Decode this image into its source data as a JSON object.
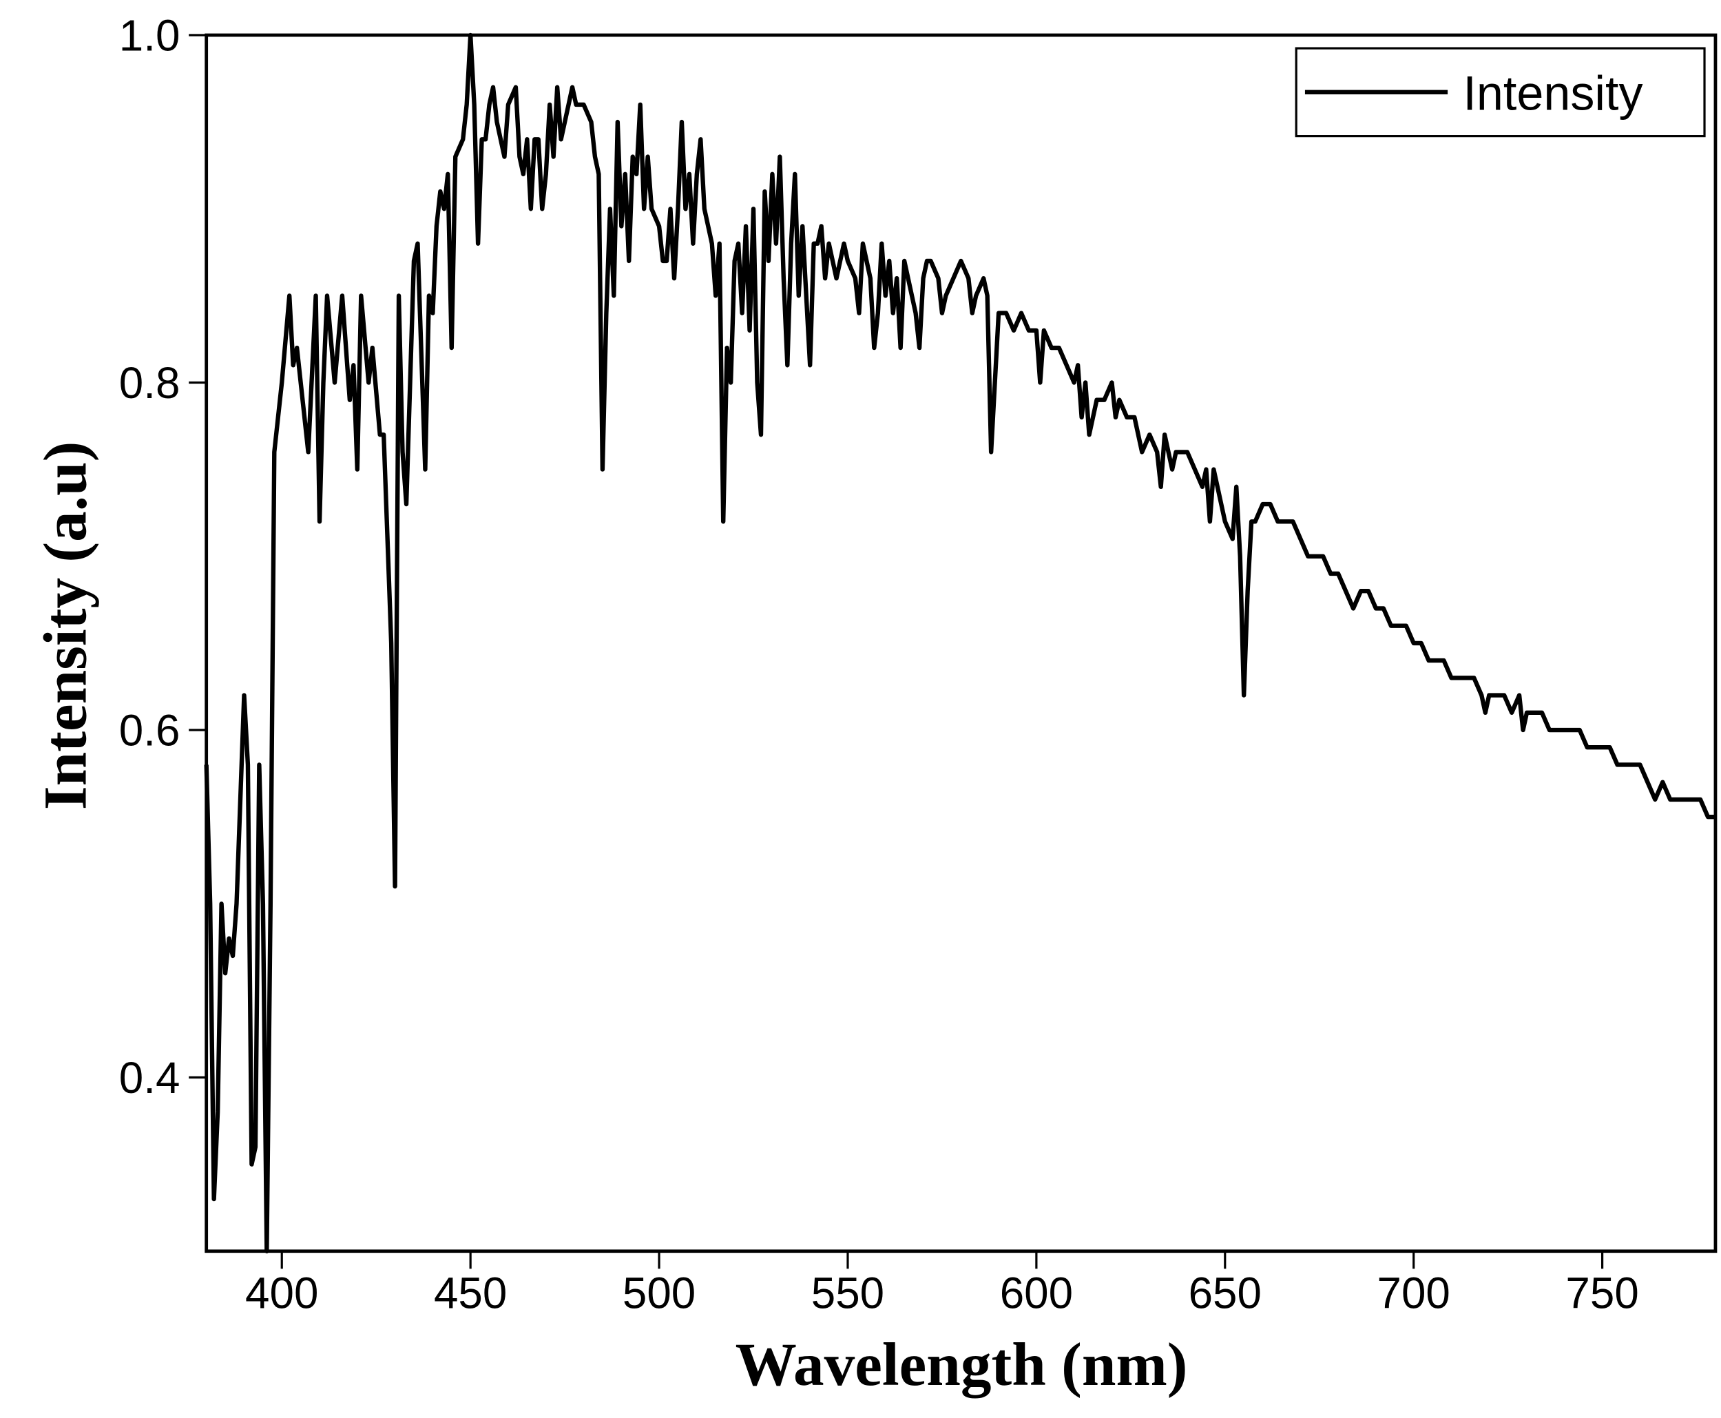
{
  "chart_data": {
    "type": "line",
    "x_label": "Wavelength (nm)",
    "y_label": "Intensity (a.u)",
    "xlim": [
      380,
      780
    ],
    "ylim": [
      0.3,
      1.0
    ],
    "xticks": [
      400,
      450,
      500,
      550,
      600,
      650,
      700,
      750
    ],
    "yticks": [
      {
        "value": 0.4,
        "label": "0.4"
      },
      {
        "value": 0.6,
        "label": "0.6"
      },
      {
        "value": 0.8,
        "label": "0.8"
      },
      {
        "value": 1.0,
        "label": "1.0"
      }
    ],
    "legend": "upper right",
    "x": [
      380,
      381,
      382,
      383,
      384,
      385,
      386,
      387,
      388,
      389,
      390,
      391,
      392,
      393,
      394,
      395,
      396,
      397,
      398,
      400,
      402,
      403,
      404,
      406,
      407,
      409,
      410,
      411,
      412,
      414,
      416,
      418,
      419,
      420,
      421,
      423,
      424,
      426,
      427,
      429,
      430,
      431,
      432,
      433,
      434,
      435,
      436,
      438,
      439,
      440,
      441,
      442,
      443,
      444,
      445,
      446,
      448,
      449,
      450,
      451,
      452,
      453,
      454,
      455,
      456,
      457,
      459,
      460,
      462,
      463,
      464,
      465,
      466,
      467,
      468,
      469,
      470,
      471,
      472,
      473,
      474,
      475,
      476,
      477,
      478,
      480,
      482,
      483,
      484,
      485,
      486,
      487,
      488,
      489,
      490,
      491,
      492,
      493,
      494,
      495,
      496,
      497,
      498,
      500,
      501,
      502,
      503,
      504,
      505,
      506,
      507,
      508,
      509,
      510,
      511,
      512,
      514,
      515,
      516,
      517,
      518,
      519,
      520,
      521,
      522,
      523,
      524,
      525,
      526,
      527,
      528,
      529,
      530,
      531,
      532,
      533,
      534,
      535,
      536,
      537,
      538,
      539,
      540,
      541,
      542,
      543,
      544,
      545,
      546,
      547,
      548,
      549,
      550,
      552,
      553,
      554,
      555,
      556,
      557,
      558,
      559,
      560,
      561,
      562,
      563,
      564,
      565,
      566,
      567,
      568,
      569,
      570,
      571,
      572,
      574,
      575,
      576,
      578,
      580,
      582,
      583,
      584,
      586,
      587,
      588,
      590,
      592,
      594,
      596,
      598,
      600,
      601,
      602,
      604,
      606,
      608,
      610,
      611,
      612,
      613,
      614,
      616,
      618,
      620,
      621,
      622,
      624,
      626,
      627,
      628,
      630,
      632,
      633,
      634,
      636,
      637,
      638,
      640,
      642,
      644,
      645,
      646,
      647,
      648,
      650,
      652,
      653,
      654,
      655,
      656,
      657,
      658,
      660,
      662,
      664,
      666,
      668,
      670,
      672,
      674,
      676,
      678,
      680,
      682,
      684,
      686,
      688,
      690,
      692,
      694,
      696,
      698,
      700,
      702,
      704,
      706,
      708,
      710,
      712,
      714,
      716,
      718,
      719,
      720,
      722,
      724,
      726,
      728,
      729,
      730,
      732,
      734,
      736,
      738,
      740,
      742,
      744,
      746,
      748,
      750,
      752,
      754,
      756,
      758,
      760,
      762,
      764,
      766,
      768,
      770,
      772,
      774,
      776,
      778,
      780
    ],
    "series": [
      {
        "name": "Intensity",
        "color": "#000000",
        "values": [
          0.58,
          0.5,
          0.33,
          0.38,
          0.5,
          0.46,
          0.48,
          0.47,
          0.5,
          0.56,
          0.62,
          0.58,
          0.35,
          0.36,
          0.58,
          0.5,
          0.3,
          0.5,
          0.76,
          0.8,
          0.85,
          0.81,
          0.82,
          0.78,
          0.76,
          0.85,
          0.72,
          0.8,
          0.85,
          0.8,
          0.85,
          0.79,
          0.81,
          0.75,
          0.85,
          0.8,
          0.82,
          0.77,
          0.77,
          0.65,
          0.51,
          0.85,
          0.76,
          0.73,
          0.8,
          0.87,
          0.88,
          0.75,
          0.85,
          0.84,
          0.89,
          0.91,
          0.9,
          0.92,
          0.82,
          0.93,
          0.94,
          0.96,
          1.0,
          0.96,
          0.88,
          0.94,
          0.94,
          0.96,
          0.97,
          0.95,
          0.93,
          0.96,
          0.97,
          0.93,
          0.92,
          0.94,
          0.9,
          0.94,
          0.94,
          0.9,
          0.92,
          0.96,
          0.93,
          0.97,
          0.94,
          0.95,
          0.96,
          0.97,
          0.96,
          0.96,
          0.95,
          0.93,
          0.92,
          0.75,
          0.84,
          0.9,
          0.85,
          0.95,
          0.89,
          0.92,
          0.87,
          0.93,
          0.92,
          0.96,
          0.9,
          0.93,
          0.9,
          0.89,
          0.87,
          0.87,
          0.9,
          0.86,
          0.9,
          0.95,
          0.9,
          0.92,
          0.88,
          0.92,
          0.94,
          0.9,
          0.88,
          0.85,
          0.88,
          0.72,
          0.82,
          0.8,
          0.87,
          0.88,
          0.84,
          0.89,
          0.83,
          0.9,
          0.8,
          0.77,
          0.91,
          0.87,
          0.92,
          0.88,
          0.93,
          0.86,
          0.81,
          0.88,
          0.92,
          0.85,
          0.89,
          0.85,
          0.81,
          0.88,
          0.88,
          0.89,
          0.86,
          0.88,
          0.87,
          0.86,
          0.87,
          0.88,
          0.87,
          0.86,
          0.84,
          0.88,
          0.87,
          0.86,
          0.82,
          0.84,
          0.88,
          0.85,
          0.87,
          0.84,
          0.86,
          0.82,
          0.87,
          0.86,
          0.85,
          0.84,
          0.82,
          0.86,
          0.87,
          0.87,
          0.86,
          0.84,
          0.85,
          0.86,
          0.87,
          0.86,
          0.84,
          0.85,
          0.86,
          0.85,
          0.76,
          0.84,
          0.84,
          0.83,
          0.84,
          0.83,
          0.83,
          0.8,
          0.83,
          0.82,
          0.82,
          0.81,
          0.8,
          0.81,
          0.78,
          0.8,
          0.77,
          0.79,
          0.79,
          0.8,
          0.78,
          0.79,
          0.78,
          0.78,
          0.77,
          0.76,
          0.77,
          0.76,
          0.74,
          0.77,
          0.75,
          0.76,
          0.76,
          0.76,
          0.75,
          0.74,
          0.75,
          0.72,
          0.75,
          0.74,
          0.72,
          0.71,
          0.74,
          0.7,
          0.62,
          0.68,
          0.72,
          0.72,
          0.73,
          0.73,
          0.72,
          0.72,
          0.72,
          0.71,
          0.7,
          0.7,
          0.7,
          0.69,
          0.69,
          0.68,
          0.67,
          0.68,
          0.68,
          0.67,
          0.67,
          0.66,
          0.66,
          0.66,
          0.65,
          0.65,
          0.64,
          0.64,
          0.64,
          0.63,
          0.63,
          0.63,
          0.63,
          0.62,
          0.61,
          0.62,
          0.62,
          0.62,
          0.61,
          0.62,
          0.6,
          0.61,
          0.61,
          0.61,
          0.6,
          0.6,
          0.6,
          0.6,
          0.6,
          0.59,
          0.59,
          0.59,
          0.59,
          0.58,
          0.58,
          0.58,
          0.58,
          0.57,
          0.56,
          0.57,
          0.56,
          0.56,
          0.56,
          0.56,
          0.56,
          0.55,
          0.55
        ]
      }
    ]
  }
}
